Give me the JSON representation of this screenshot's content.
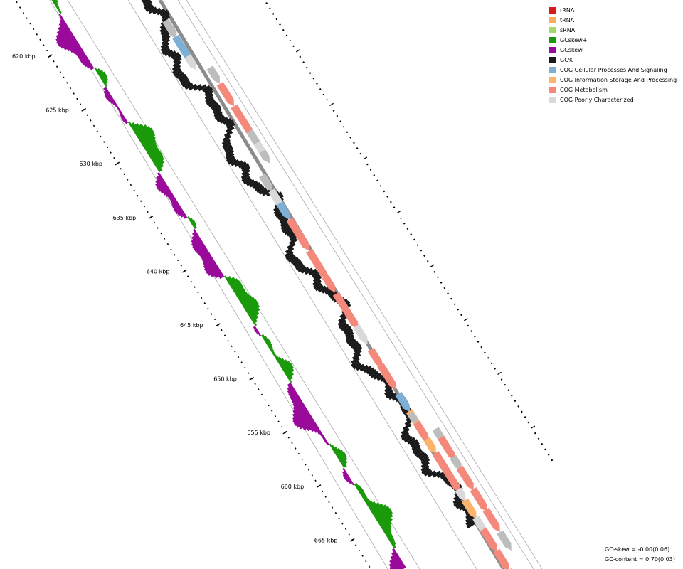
{
  "map": {
    "ticks": [
      {
        "label": "620 kbp",
        "value": 620
      },
      {
        "label": "625 kbp",
        "value": 625
      },
      {
        "label": "630 kbp",
        "value": 630
      },
      {
        "label": "635 kbp",
        "value": 635
      },
      {
        "label": "640 kbp",
        "value": 640
      },
      {
        "label": "645 kbp",
        "value": 645
      },
      {
        "label": "650 kbp",
        "value": 650
      },
      {
        "label": "655 kbp",
        "value": 655
      },
      {
        "label": "660 kbp",
        "value": 660
      },
      {
        "label": "665 kbp",
        "value": 665
      }
    ]
  },
  "legend": {
    "items": [
      {
        "label": "rRNA",
        "color": "#d7191c"
      },
      {
        "label": "tRNA",
        "color": "#fdae61"
      },
      {
        "label": "sRNA",
        "color": "#a6d96a"
      },
      {
        "label": "GCskew+",
        "color": "#1a9a0a"
      },
      {
        "label": "GCskew-",
        "color": "#9a0a9a"
      },
      {
        "label": "GC%",
        "color": "#1a1a1a"
      },
      {
        "label": "COG Cellular Processes And Signaling",
        "color": "#7eb0d5"
      },
      {
        "label": "COG Information Storage And Processing",
        "color": "#fdb36b"
      },
      {
        "label": "COG Metabolism",
        "color": "#f4897b"
      },
      {
        "label": "COG Poorly Characterized",
        "color": "#d9d9d9"
      }
    ]
  },
  "stats": {
    "gc_skew": "GC-skew = -0.00(0.06)",
    "gc_content": "GC-content = 0.70(0.03)"
  }
}
